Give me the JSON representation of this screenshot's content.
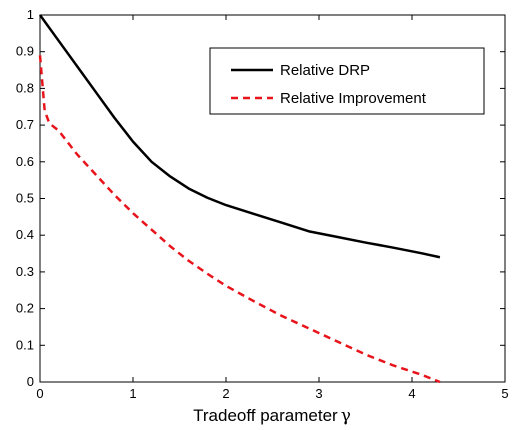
{
  "chart_data": {
    "type": "line",
    "title": "",
    "xlabel": "Tradeoff parameter",
    "xlabel_symbol": "γ",
    "ylabel": "",
    "xlim": [
      0,
      5
    ],
    "ylim": [
      0,
      1
    ],
    "xticks": [
      "0",
      "1",
      "2",
      "3",
      "4",
      "5"
    ],
    "yticks": [
      "0",
      "0.1",
      "0.2",
      "0.3",
      "0.4",
      "0.5",
      "0.6",
      "0.7",
      "0.8",
      "0.9",
      "1"
    ],
    "grid": false,
    "legend_position": "top-right",
    "series": [
      {
        "name": "Relative DRP",
        "color": "#000000",
        "dash": "solid",
        "x": [
          0,
          0.2,
          0.4,
          0.6,
          0.8,
          1.0,
          1.2,
          1.4,
          1.6,
          1.8,
          2.0,
          2.3,
          2.6,
          2.9,
          3.2,
          3.5,
          3.8,
          4.1,
          4.3
        ],
        "y": [
          1.0,
          0.93,
          0.86,
          0.79,
          0.72,
          0.655,
          0.6,
          0.56,
          0.527,
          0.502,
          0.482,
          0.458,
          0.434,
          0.41,
          0.395,
          0.38,
          0.366,
          0.351,
          0.34
        ]
      },
      {
        "name": "Relative Improvement",
        "color": "#e8141b",
        "dash": "dashed",
        "x": [
          0,
          0.05,
          0.1,
          0.2,
          0.4,
          0.6,
          0.8,
          1.0,
          1.2,
          1.4,
          1.6,
          1.8,
          2.0,
          2.3,
          2.6,
          2.9,
          3.2,
          3.5,
          3.8,
          4.1,
          4.3
        ],
        "y": [
          0.89,
          0.74,
          0.705,
          0.685,
          0.62,
          0.565,
          0.51,
          0.46,
          0.415,
          0.37,
          0.33,
          0.295,
          0.262,
          0.22,
          0.18,
          0.145,
          0.11,
          0.075,
          0.045,
          0.02,
          0.0
        ]
      }
    ]
  }
}
